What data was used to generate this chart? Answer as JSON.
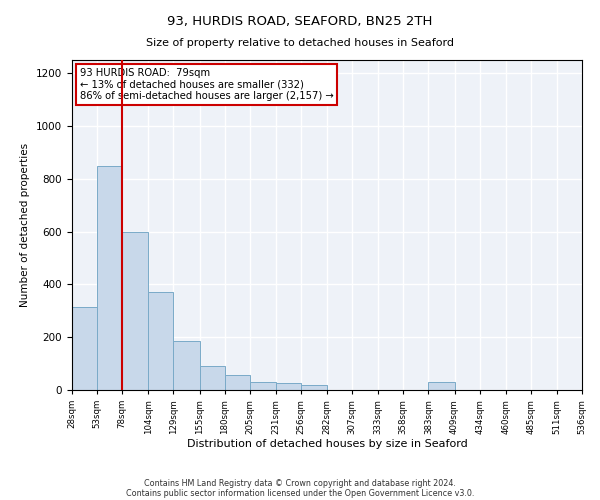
{
  "title1": "93, HURDIS ROAD, SEAFORD, BN25 2TH",
  "title2": "Size of property relative to detached houses in Seaford",
  "xlabel": "Distribution of detached houses by size in Seaford",
  "ylabel": "Number of detached properties",
  "annotation_line1": "93 HURDIS ROAD:  79sqm",
  "annotation_line2": "← 13% of detached houses are smaller (332)",
  "annotation_line3": "86% of semi-detached houses are larger (2,157) →",
  "footnote1": "Contains HM Land Registry data © Crown copyright and database right 2024.",
  "footnote2": "Contains public sector information licensed under the Open Government Licence v3.0.",
  "bin_edges": [
    28,
    53,
    78,
    104,
    129,
    155,
    180,
    205,
    231,
    256,
    282,
    307,
    333,
    358,
    383,
    409,
    434,
    460,
    485,
    511,
    536
  ],
  "bar_heights": [
    315,
    850,
    600,
    370,
    185,
    90,
    55,
    30,
    25,
    20,
    0,
    0,
    0,
    0,
    30,
    0,
    0,
    0,
    0,
    0
  ],
  "bar_color": "#c8d8ea",
  "bar_edge_color": "#7aaac8",
  "background_color": "#eef2f8",
  "red_line_color": "#cc0000",
  "annotation_box_color": "#cc0000",
  "red_line_x": 78,
  "ylim": [
    0,
    1250
  ],
  "yticks": [
    0,
    200,
    400,
    600,
    800,
    1000,
    1200
  ]
}
